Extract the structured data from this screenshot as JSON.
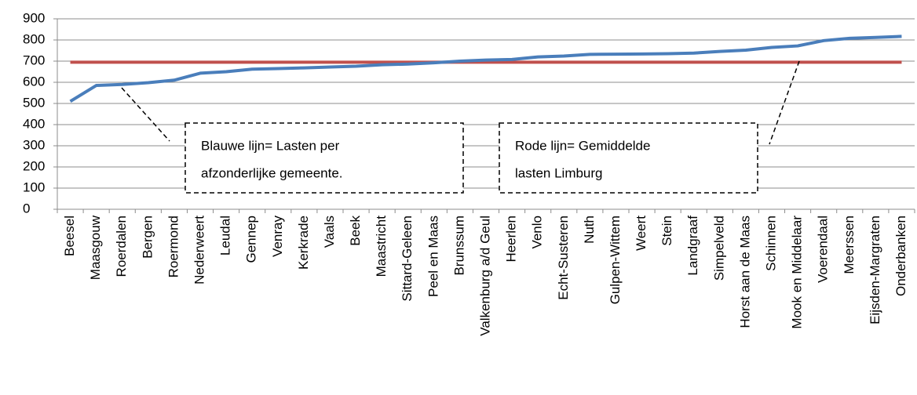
{
  "chart_data": {
    "type": "line",
    "categories": [
      "Beesel",
      "Maasgouw",
      "Roerdalen",
      "Bergen",
      "Roermond",
      "Nederweert",
      "Leudal",
      "Gennep",
      "Venray",
      "Kerkrade",
      "Vaals",
      "Beek",
      "Maastricht",
      "Sittard-Geleen",
      "Peel en Maas",
      "Brunssum",
      "Valkenburg a/d Geul",
      "Heerlen",
      "Venlo",
      "Echt-Susteren",
      "Nuth",
      "Gulpen-Wittem",
      "Weert",
      "Stein",
      "Landgraaf",
      "Simpelveld",
      "Horst aan de Maas",
      "Schinnen",
      "Mook en Middelaar",
      "Voerendaal",
      "Meerssen",
      "Eijsden-Margraten",
      "Onderbanken"
    ],
    "series": [
      {
        "color": "#4a7ebb",
        "values": [
          510,
          585,
          590,
          598,
          610,
          643,
          650,
          662,
          665,
          668,
          672,
          676,
          683,
          686,
          692,
          700,
          705,
          708,
          720,
          724,
          732,
          733,
          734,
          735,
          738,
          746,
          752,
          765,
          772,
          797,
          808,
          812,
          817
        ]
      },
      {
        "color": "#c0504d",
        "values": [
          695,
          695,
          695,
          695,
          695,
          695,
          695,
          695,
          695,
          695,
          695,
          695,
          695,
          695,
          695,
          695,
          695,
          695,
          695,
          695,
          695,
          695,
          695,
          695,
          695,
          695,
          695,
          695,
          695,
          695,
          695,
          695,
          695
        ]
      }
    ],
    "ylim": [
      0,
      900
    ],
    "yticks": [
      0,
      100,
      200,
      300,
      400,
      500,
      600,
      700,
      800,
      900
    ],
    "grid": true,
    "annotations": [
      {
        "lines": [
          "Blauwe lijn= Lasten per",
          "afzonderlijke gemeente."
        ]
      },
      {
        "lines": [
          "Rode lijn= Gemiddelde",
          "lasten Limburg"
        ]
      }
    ]
  }
}
